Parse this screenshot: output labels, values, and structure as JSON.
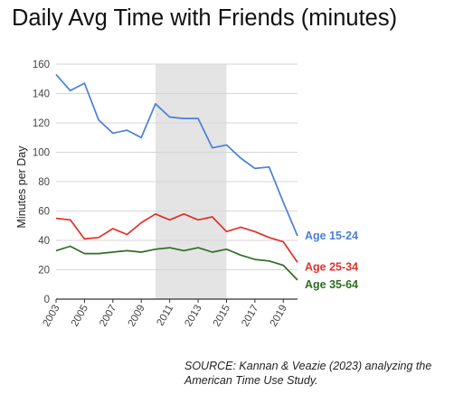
{
  "title": "Daily Avg Time with Friends (minutes)",
  "source": "SOURCE: Kannan & Veazie (2023) analyzing the American Time Use Study.",
  "chart_data": {
    "type": "line",
    "title": "Daily Avg Time with Friends (minutes)",
    "xlabel": "",
    "ylabel": "Minutes per Day",
    "xlim": [
      2003,
      2020
    ],
    "ylim": [
      0,
      160
    ],
    "yticks": [
      0,
      20,
      40,
      60,
      80,
      100,
      120,
      140,
      160
    ],
    "xticks": [
      "2003",
      "2005",
      "2007",
      "2009",
      "2011",
      "2013",
      "2015",
      "2017",
      "2019"
    ],
    "grid": "horizontal",
    "legend": "direct labels at right end of lines",
    "shaded_region": {
      "x_start": 2010,
      "x_end": 2015,
      "color": "#e4e4e4"
    },
    "x": [
      2003,
      2004,
      2005,
      2006,
      2007,
      2008,
      2009,
      2010,
      2011,
      2012,
      2013,
      2014,
      2015,
      2016,
      2017,
      2018,
      2019,
      2020
    ],
    "series": [
      {
        "name": "Age 15-24",
        "color": "#4a7fd8",
        "values": [
          153,
          142,
          147,
          122,
          113,
          115,
          110,
          133,
          124,
          123,
          123,
          103,
          105,
          96,
          89,
          90,
          66,
          43
        ]
      },
      {
        "name": "Age 25-34",
        "color": "#e0302a",
        "values": [
          55,
          54,
          41,
          42,
          48,
          44,
          52,
          58,
          54,
          58,
          54,
          56,
          46,
          49,
          46,
          42,
          39,
          25
        ]
      },
      {
        "name": "Age 35-64",
        "color": "#2f6e23",
        "values": [
          33,
          36,
          31,
          31,
          32,
          33,
          32,
          34,
          35,
          33,
          35,
          32,
          34,
          30,
          27,
          26,
          23,
          13
        ]
      }
    ]
  }
}
